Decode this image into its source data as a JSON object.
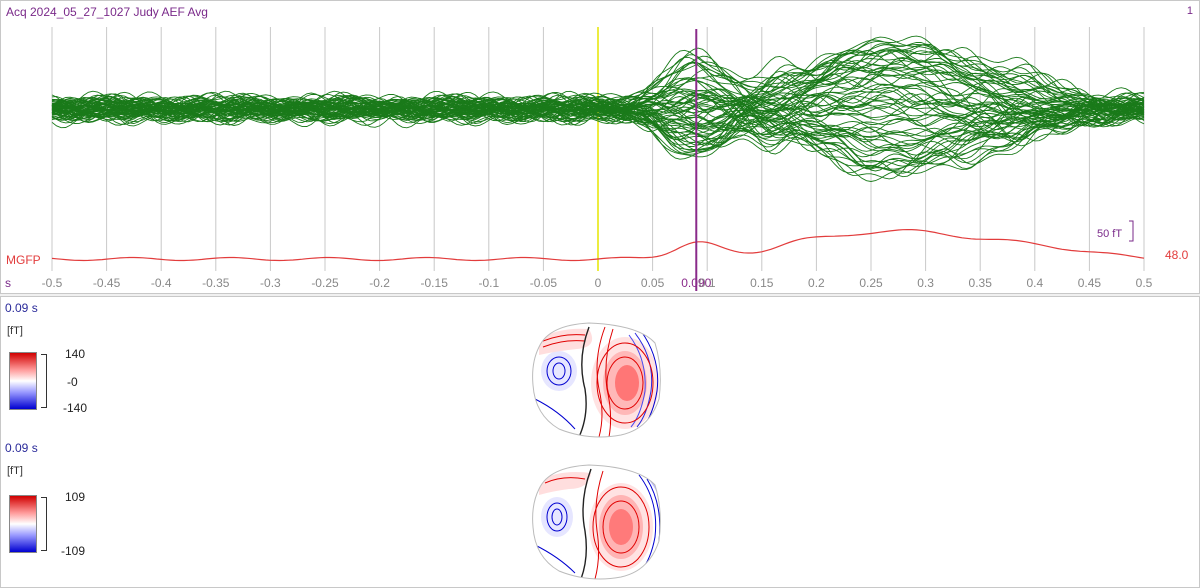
{
  "header": {
    "title": "Acq 2024_05_27_1027 Judy AEF Avg",
    "channel_num": "1"
  },
  "axis": {
    "unit": "s",
    "ticks": [
      "-0.5",
      "-0.45",
      "-0.4",
      "-0.35",
      "-0.3",
      "-0.25",
      "-0.2",
      "-0.15",
      "-0.1",
      "-0.05",
      "0",
      "0.05",
      "0.090",
      "0.1",
      "0.15",
      "0.2",
      "0.25",
      "0.3",
      "0.35",
      "0.4",
      "0.45",
      "0.5"
    ],
    "tick_values": [
      -0.5,
      -0.45,
      -0.4,
      -0.35,
      -0.3,
      -0.25,
      -0.2,
      -0.15,
      -0.1,
      -0.05,
      0,
      0.05,
      0.09,
      0.1,
      0.15,
      0.2,
      0.25,
      0.3,
      0.35,
      0.4,
      0.45,
      0.5
    ],
    "range": [
      -0.5,
      0.5
    ],
    "cursor_time": 0.09,
    "cursor_label": "0.090",
    "zero_line": 0
  },
  "scale_bar": {
    "label": "50 fT"
  },
  "mgfp": {
    "label": "MGFP",
    "value": "48.0",
    "color": "#e23c3c"
  },
  "colors": {
    "wave": "#1a7a1a",
    "cursor": "#8a2a8a",
    "zero": "#e6e600",
    "grid": "#c8c8c8",
    "positive": "#e00000",
    "negative": "#0000e0"
  },
  "topomaps": [
    {
      "time": "0.09 s",
      "unit": "[fT]",
      "max": "140",
      "mid": "-0",
      "min": "-140"
    },
    {
      "time": "0.09 s",
      "unit": "[fT]",
      "max": "109",
      "min": "-109"
    }
  ]
}
